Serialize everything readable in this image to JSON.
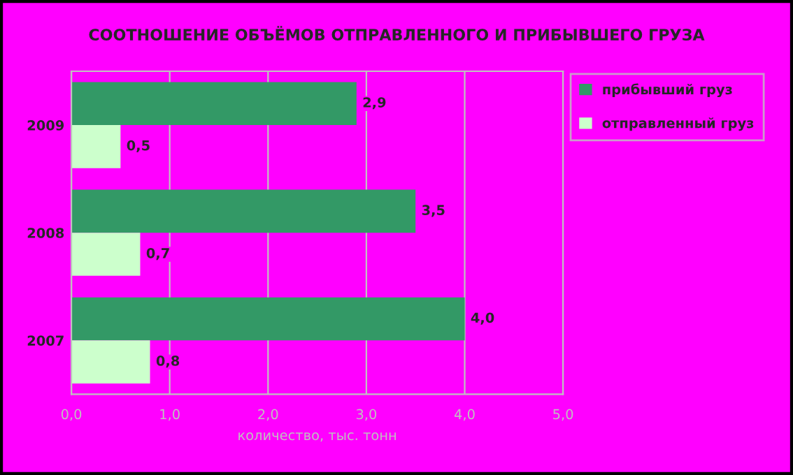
{
  "chart_data": {
    "type": "bar",
    "orientation": "horizontal",
    "title": "СООТНОШЕНИЕ ОБЪЁМОВ ОТПРАВЛЕННОГО И ПРИБЫВШЕГО ГРУЗА",
    "xlabel": "количество, тыс. тонн",
    "categories": [
      "2009",
      "2008",
      "2007"
    ],
    "series": [
      {
        "name": "прибывший груз",
        "color": "#339966",
        "values": [
          2.9,
          3.5,
          4.0
        ],
        "value_labels": [
          "2,9",
          "3,5",
          "4,0"
        ]
      },
      {
        "name": "отправленный груз",
        "color": "#ccffcc",
        "values": [
          0.5,
          0.7,
          0.8
        ],
        "value_labels": [
          "0,5",
          "0,7",
          "0,8"
        ]
      }
    ],
    "xlim": [
      0,
      5
    ],
    "xticks": [
      {
        "value": 0,
        "label": "0,0"
      },
      {
        "value": 1,
        "label": "1,0"
      },
      {
        "value": 2,
        "label": "2,0"
      },
      {
        "value": 3,
        "label": "3,0"
      },
      {
        "value": 4,
        "label": "4,0"
      },
      {
        "value": 5,
        "label": "5,0"
      }
    ],
    "grid": "x",
    "legend": "top right"
  }
}
